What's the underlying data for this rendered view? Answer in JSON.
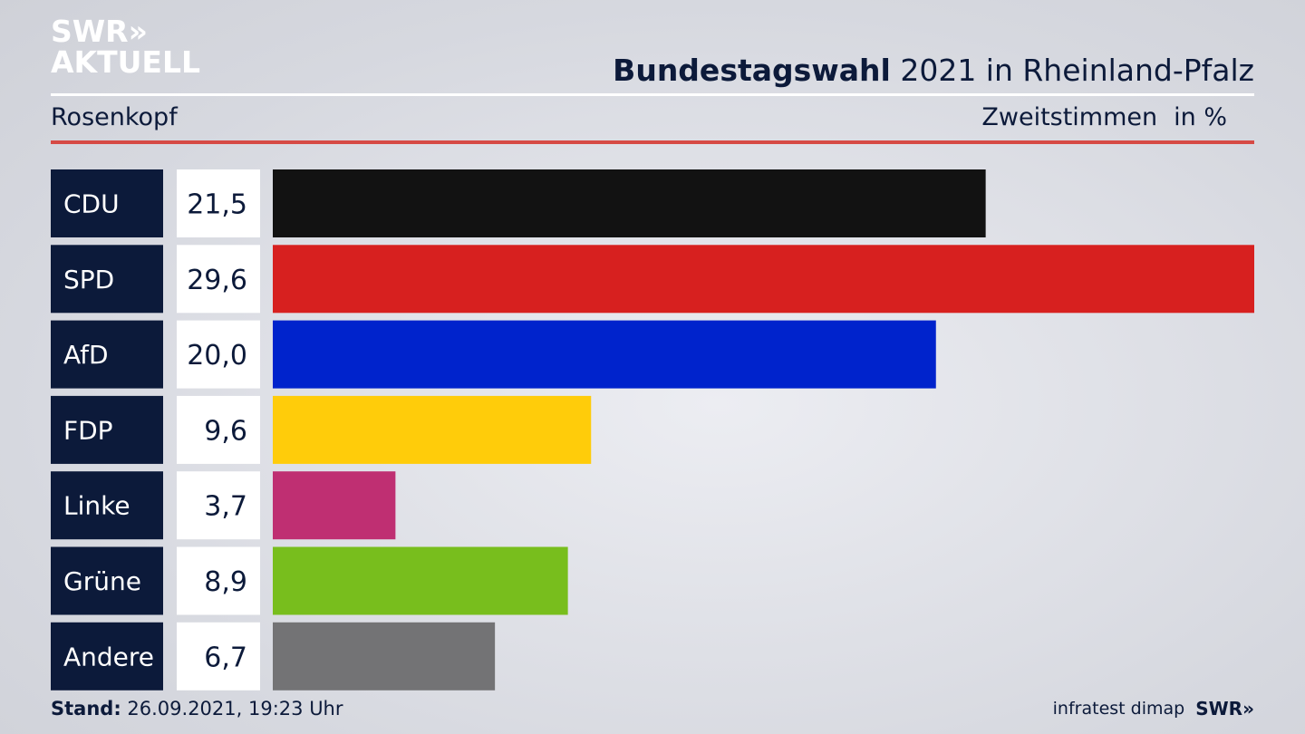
{
  "logo": {
    "line1": "SWR»",
    "line2": "AKTUELL"
  },
  "header": {
    "title_bold": "Bundestagswahl",
    "title_rest": "2021 in Rheinland-Pfalz",
    "region": "Rosenkopf",
    "measure": "Zweitstimmen",
    "unit": "in %"
  },
  "footer": {
    "stand_label": "Stand:",
    "stand_value": "26.09.2021, 19:23 Uhr",
    "source": "infratest dimap",
    "brand": "SWR»"
  },
  "colors": {
    "label_bg": "#0c1a3a",
    "value_bg": "#ffffff",
    "red_rule": "#d64a45"
  },
  "chart_data": {
    "type": "bar",
    "orientation": "horizontal",
    "title": "Bundestagswahl 2021 in Rheinland-Pfalz",
    "subtitle": "Rosenkopf",
    "measure": "Zweitstimmen",
    "unit": "in %",
    "categories": [
      "CDU",
      "SPD",
      "AfD",
      "FDP",
      "Linke",
      "Grüne",
      "Andere"
    ],
    "values": [
      21.5,
      29.6,
      20.0,
      9.6,
      3.7,
      8.9,
      6.7
    ],
    "value_labels": [
      "21,5",
      "29,6",
      "20,0",
      "9,6",
      "3,7",
      "8,9",
      "6,7"
    ],
    "bar_colors": [
      "#121212",
      "#d7201f",
      "#0023cc",
      "#ffcc0a",
      "#bf2f72",
      "#78be1d",
      "#737375"
    ],
    "xlim": [
      0,
      29.6
    ],
    "grid": false,
    "legend": "none"
  }
}
